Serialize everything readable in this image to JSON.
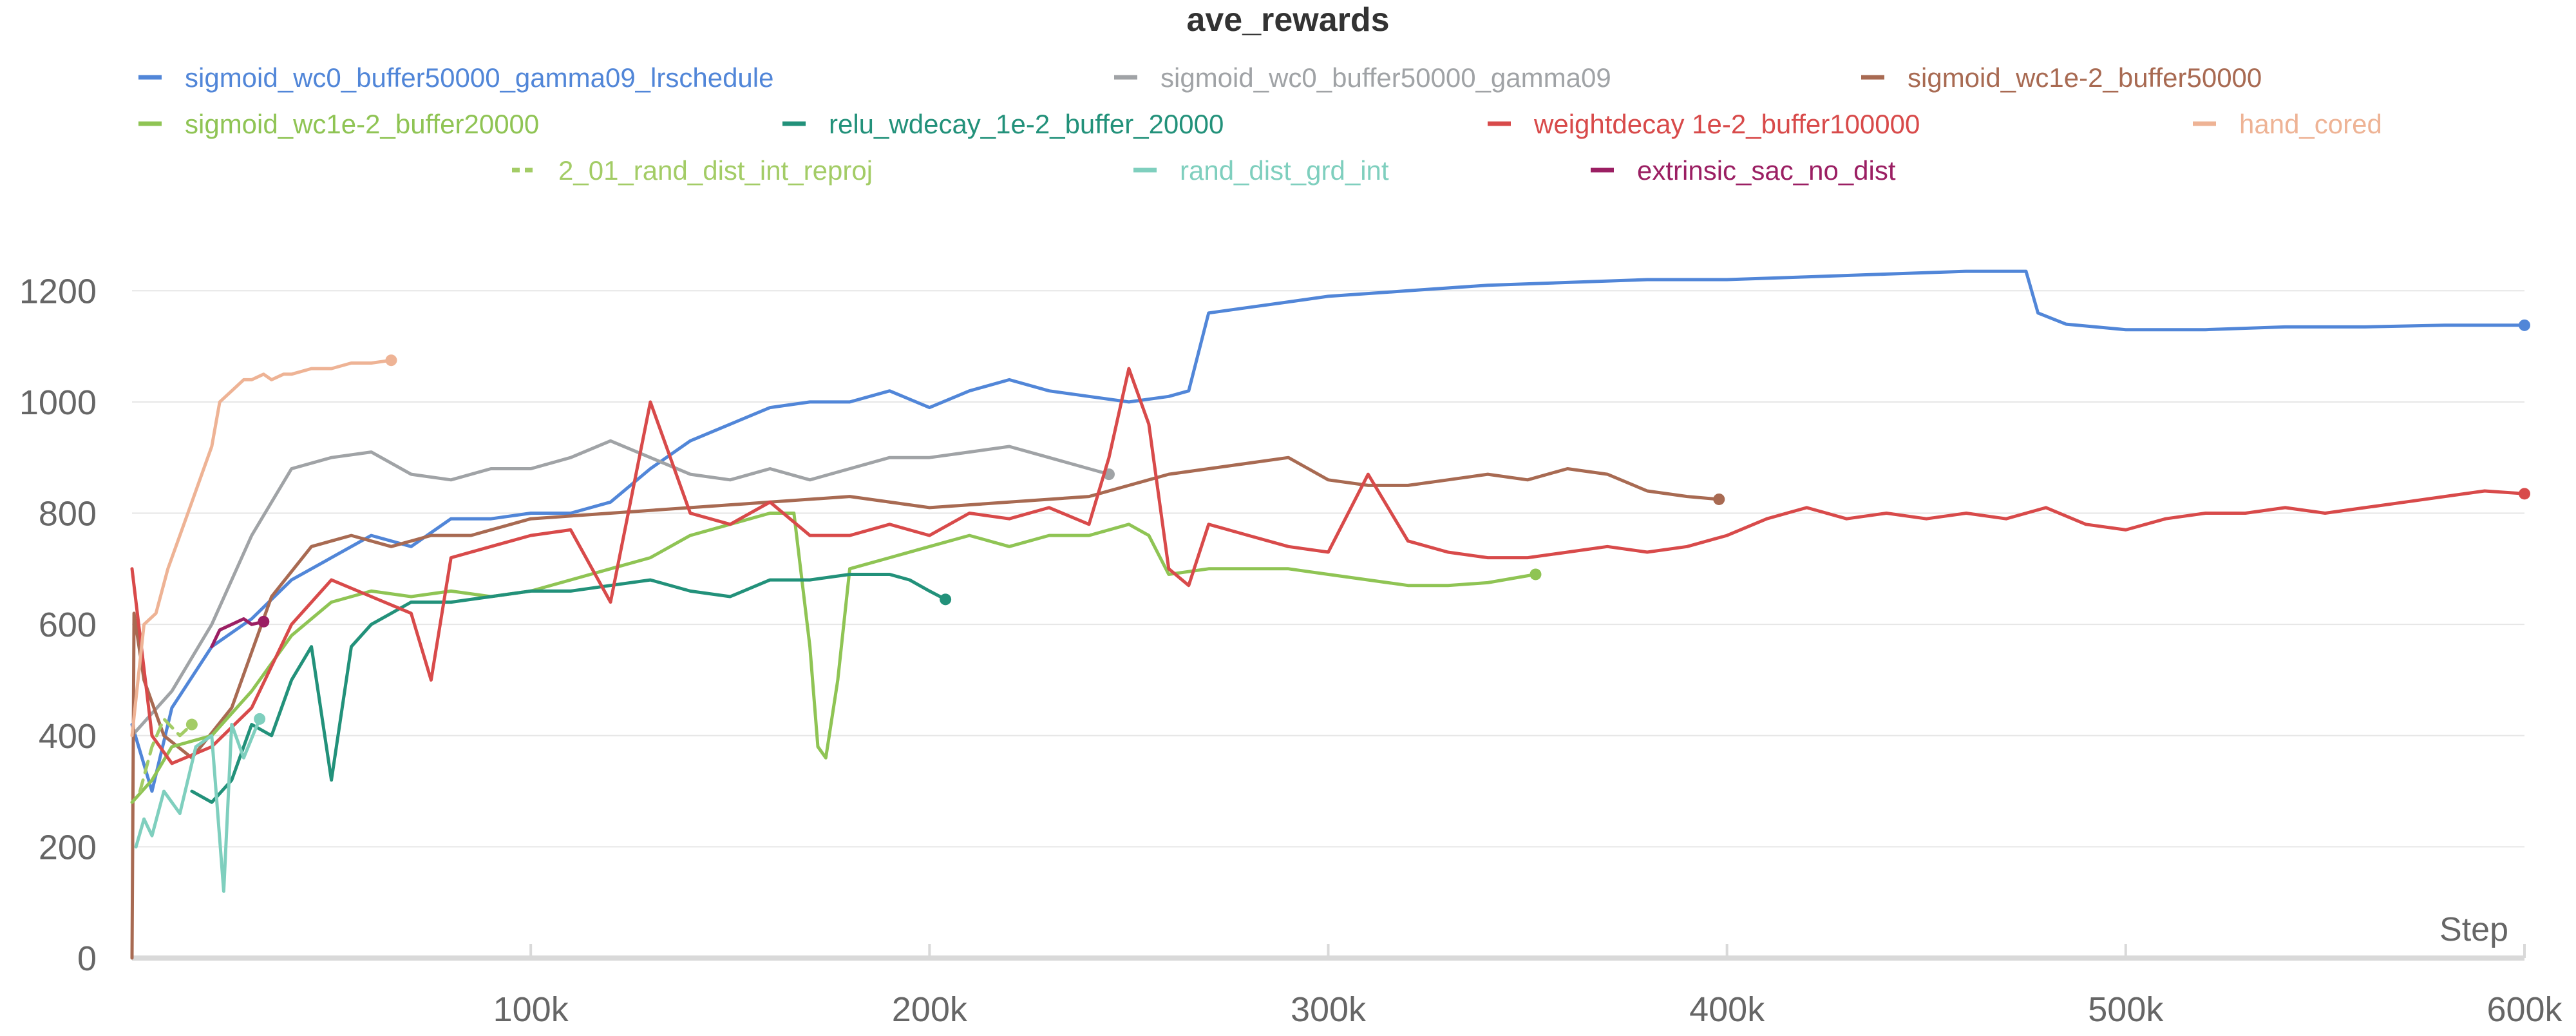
{
  "chart_data": {
    "type": "line",
    "title": "ave_rewards",
    "xlabel": "Step",
    "ylabel": "",
    "xlim": [
      0,
      600000
    ],
    "ylim": [
      0,
      1300
    ],
    "x_ticks": [
      100000,
      200000,
      300000,
      400000,
      500000,
      600000
    ],
    "x_tick_labels": [
      "100k",
      "200k",
      "300k",
      "400k",
      "500k",
      "600k"
    ],
    "y_ticks": [
      0,
      200,
      400,
      600,
      800,
      1000,
      1200
    ],
    "y_tick_labels": [
      "0",
      "200",
      "400",
      "600",
      "800",
      "1000",
      "1200"
    ],
    "grid": true,
    "legend_position": "top",
    "series": [
      {
        "name": "sigmoid_wc0_buffer50000_gamma09_lrschedule",
        "color": "#5186d8",
        "dashed": false,
        "x": [
          0,
          5000,
          10000,
          20000,
          30000,
          40000,
          50000,
          60000,
          70000,
          80000,
          90000,
          100000,
          110000,
          120000,
          130000,
          140000,
          150000,
          160000,
          170000,
          180000,
          190000,
          200000,
          210000,
          220000,
          230000,
          240000,
          250000,
          260000,
          265000,
          270000,
          280000,
          290000,
          300000,
          320000,
          340000,
          360000,
          380000,
          400000,
          420000,
          440000,
          460000,
          475000,
          478000,
          485000,
          500000,
          520000,
          540000,
          560000,
          580000,
          600000
        ],
        "y": [
          420,
          300,
          450,
          560,
          610,
          680,
          720,
          760,
          740,
          790,
          790,
          800,
          800,
          820,
          880,
          930,
          960,
          990,
          1000,
          1000,
          1020,
          990,
          1020,
          1040,
          1020,
          1010,
          1000,
          1010,
          1020,
          1160,
          1170,
          1180,
          1190,
          1200,
          1210,
          1215,
          1220,
          1220,
          1225,
          1230,
          1235,
          1235,
          1160,
          1140,
          1130,
          1130,
          1135,
          1135,
          1138,
          1138
        ]
      },
      {
        "name": "sigmoid_wc0_buffer50000_gamma09",
        "color": "#a0a3a6",
        "dashed": false,
        "x": [
          0,
          10000,
          20000,
          30000,
          40000,
          50000,
          60000,
          70000,
          80000,
          90000,
          100000,
          110000,
          120000,
          130000,
          140000,
          150000,
          160000,
          170000,
          180000,
          190000,
          200000,
          210000,
          220000,
          230000,
          240000,
          245000
        ],
        "y": [
          400,
          480,
          600,
          760,
          880,
          900,
          910,
          870,
          860,
          880,
          880,
          900,
          930,
          900,
          870,
          860,
          880,
          860,
          880,
          900,
          900,
          910,
          920,
          900,
          880,
          870
        ]
      },
      {
        "name": "sigmoid_wc1e-2_buffer50000",
        "color": "#a86a52",
        "dashed": false,
        "x": [
          0,
          500,
          3000,
          8000,
          15000,
          25000,
          35000,
          45000,
          55000,
          65000,
          75000,
          85000,
          100000,
          120000,
          140000,
          160000,
          180000,
          200000,
          220000,
          240000,
          250000,
          260000,
          270000,
          280000,
          290000,
          300000,
          310000,
          320000,
          330000,
          340000,
          350000,
          360000,
          370000,
          380000,
          390000,
          398000
        ],
        "y": [
          0,
          620,
          500,
          400,
          360,
          450,
          650,
          740,
          760,
          740,
          760,
          760,
          790,
          800,
          810,
          820,
          830,
          810,
          820,
          830,
          850,
          870,
          880,
          890,
          900,
          860,
          850,
          850,
          860,
          870,
          860,
          880,
          870,
          840,
          830,
          825
        ]
      },
      {
        "name": "sigmoid_wc1e-2_buffer20000",
        "color": "#8fc454",
        "dashed": false,
        "x": [
          0,
          5000,
          10000,
          20000,
          30000,
          40000,
          50000,
          60000,
          70000,
          80000,
          90000,
          100000,
          110000,
          120000,
          130000,
          140000,
          150000,
          160000,
          166000,
          170000,
          172000,
          174000,
          177000,
          180000,
          190000,
          200000,
          210000,
          220000,
          230000,
          240000,
          250000,
          255000,
          260000,
          270000,
          280000,
          290000,
          300000,
          310000,
          320000,
          330000,
          340000,
          352000
        ],
        "y": [
          280,
          320,
          380,
          400,
          480,
          580,
          640,
          660,
          650,
          660,
          650,
          660,
          680,
          700,
          720,
          760,
          780,
          800,
          800,
          560,
          380,
          360,
          500,
          700,
          720,
          740,
          760,
          740,
          760,
          760,
          780,
          760,
          690,
          700,
          700,
          700,
          690,
          680,
          670,
          670,
          675,
          690
        ]
      },
      {
        "name": "relu_wdecay_1e-2_buffer_20000",
        "color": "#22917a",
        "dashed": false,
        "x": [
          15000,
          20000,
          25000,
          30000,
          35000,
          40000,
          45000,
          50000,
          55000,
          60000,
          65000,
          70000,
          80000,
          90000,
          100000,
          110000,
          120000,
          130000,
          140000,
          150000,
          160000,
          170000,
          180000,
          190000,
          195000,
          200000,
          204000
        ],
        "y": [
          300,
          280,
          320,
          420,
          400,
          500,
          560,
          320,
          560,
          600,
          620,
          640,
          640,
          650,
          660,
          660,
          670,
          680,
          660,
          650,
          680,
          680,
          690,
          690,
          680,
          660,
          645
        ]
      },
      {
        "name": "weightdecay 1e-2_buffer100000",
        "color": "#d84a4a",
        "dashed": false,
        "x": [
          0,
          5000,
          10000,
          20000,
          30000,
          40000,
          50000,
          60000,
          70000,
          75000,
          80000,
          90000,
          100000,
          110000,
          120000,
          130000,
          140000,
          150000,
          160000,
          170000,
          180000,
          190000,
          200000,
          210000,
          220000,
          230000,
          240000,
          245000,
          250000,
          255000,
          260000,
          265000,
          270000,
          280000,
          290000,
          300000,
          310000,
          320000,
          330000,
          340000,
          350000,
          360000,
          370000,
          380000,
          390000,
          400000,
          410000,
          420000,
          430000,
          440000,
          450000,
          460000,
          470000,
          480000,
          490000,
          500000,
          510000,
          520000,
          530000,
          540000,
          550000,
          560000,
          570000,
          580000,
          590000,
          600000
        ],
        "y": [
          700,
          400,
          350,
          380,
          450,
          600,
          680,
          650,
          620,
          500,
          720,
          740,
          760,
          770,
          640,
          1000,
          800,
          780,
          820,
          760,
          760,
          780,
          760,
          800,
          790,
          810,
          780,
          900,
          1060,
          960,
          700,
          670,
          780,
          760,
          740,
          730,
          870,
          750,
          730,
          720,
          720,
          730,
          740,
          730,
          740,
          760,
          790,
          810,
          790,
          800,
          790,
          800,
          790,
          810,
          780,
          770,
          790,
          800,
          800,
          810,
          800,
          810,
          820,
          830,
          840,
          835
        ]
      },
      {
        "name": "hand_cored",
        "color": "#eeb395",
        "dashed": false,
        "x": [
          0,
          3000,
          6000,
          9000,
          12000,
          15000,
          18000,
          20000,
          22000,
          25000,
          28000,
          30000,
          33000,
          35000,
          38000,
          40000,
          45000,
          50000,
          55000,
          60000,
          65000
        ],
        "y": [
          400,
          600,
          620,
          700,
          760,
          820,
          880,
          920,
          1000,
          1020,
          1040,
          1040,
          1050,
          1040,
          1050,
          1050,
          1060,
          1060,
          1070,
          1070,
          1075
        ]
      },
      {
        "name": "2_01_rand_dist_int_reproj",
        "color": "#a3cc66",
        "dashed": true,
        "x": [
          2000,
          5000,
          8000,
          12000,
          15000
        ],
        "y": [
          300,
          380,
          430,
          400,
          420
        ]
      },
      {
        "name": "rand_dist_grd_int",
        "color": "#7fcfbe",
        "dashed": false,
        "x": [
          1000,
          3000,
          5000,
          8000,
          12000,
          16000,
          20000,
          23000,
          25000,
          28000,
          32000
        ],
        "y": [
          200,
          250,
          220,
          300,
          260,
          380,
          400,
          120,
          420,
          360,
          430
        ]
      },
      {
        "name": "extrinsic_sac_no_dist",
        "color": "#9b1f63",
        "dashed": false,
        "x": [
          20000,
          22000,
          25000,
          28000,
          30000,
          33000
        ],
        "y": [
          560,
          590,
          600,
          610,
          600,
          605
        ]
      }
    ]
  }
}
